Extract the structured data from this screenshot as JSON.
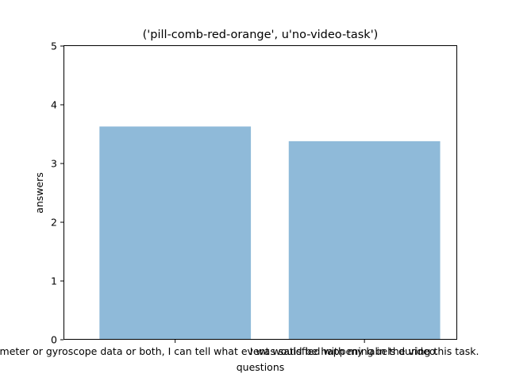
{
  "chart_data": {
    "type": "bar",
    "title": "('pill-comb-red-orange', u'no-video-task')",
    "xlabel": "questions",
    "ylabel": "answers",
    "categories": [
      "By using accelerometer or gyroscope data or both, I can tell what event would be happening in the video.",
      "I was satisfied with my labels during this task."
    ],
    "values": [
      3.63,
      3.38
    ],
    "ylim": [
      0,
      5
    ],
    "yticks": [
      "0",
      "1",
      "2",
      "3",
      "4",
      "5"
    ],
    "bar_color": "#8fbad9",
    "grid": false
  }
}
